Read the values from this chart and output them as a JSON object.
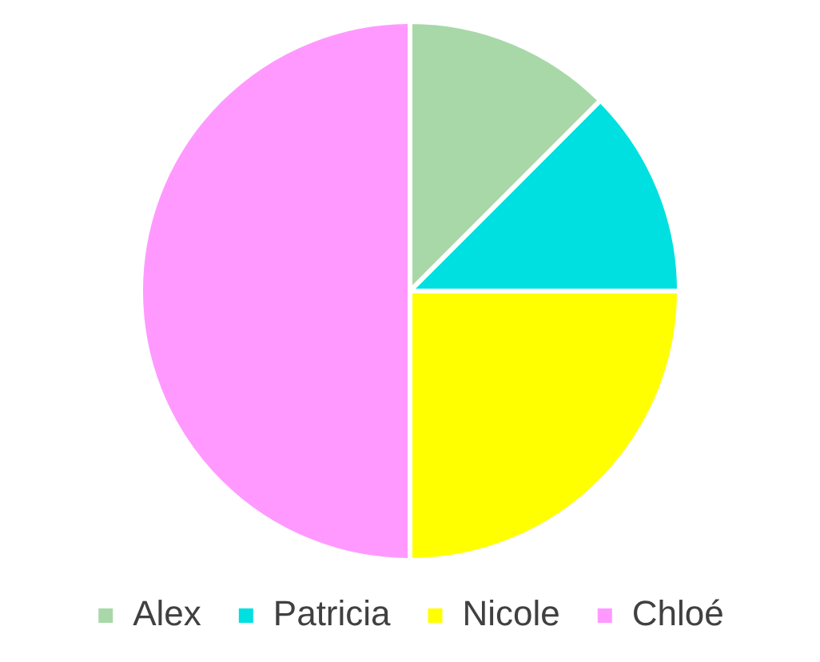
{
  "chart_data": {
    "type": "pie",
    "categories": [
      "Alex",
      "Patricia",
      "Nicole",
      "Chloé"
    ],
    "values": [
      12.5,
      12.5,
      25,
      50
    ],
    "colors": [
      "#a8d8a8",
      "#00e0e0",
      "#ffff00",
      "#ff99ff"
    ],
    "legend": "bottom"
  }
}
